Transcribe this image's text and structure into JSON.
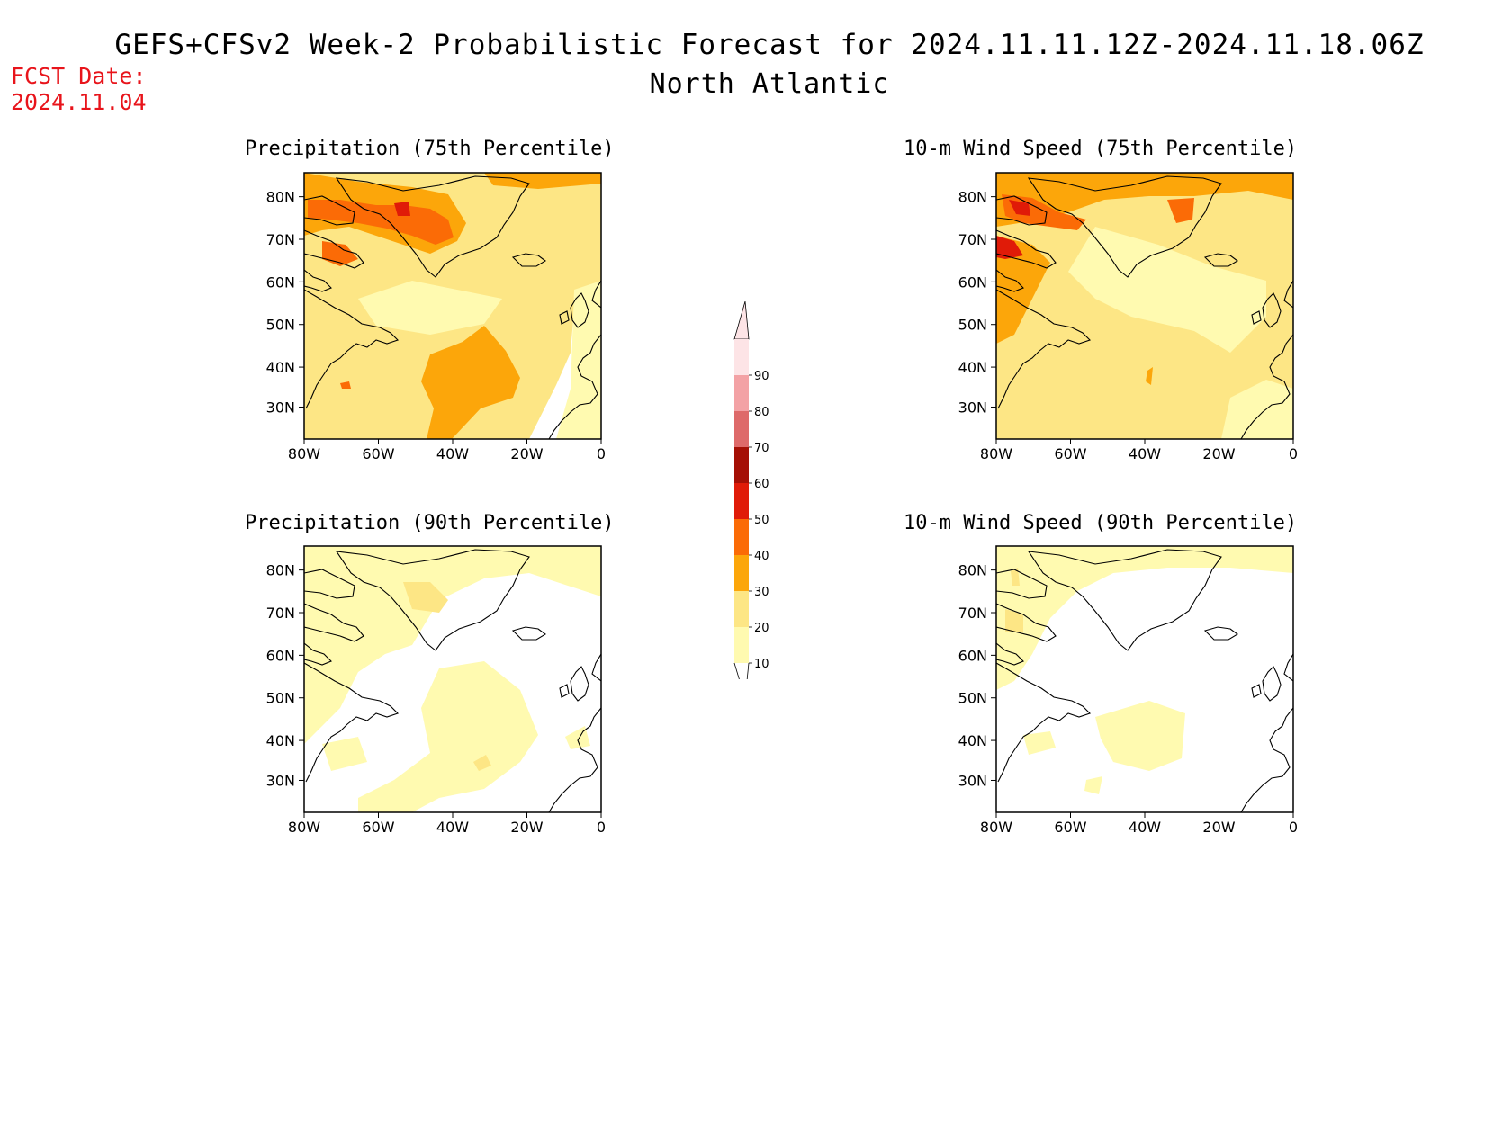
{
  "header": {
    "title": "GEFS+CFSv2 Week-2 Probabilistic Forecast for 2024.11.11.12Z-2024.11.18.06Z",
    "region": "North Atlantic",
    "fcst_label": "FCST Date:",
    "fcst_date": "2024.11.04"
  },
  "colors": {
    "c10": "#fffab0",
    "c20": "#fde685",
    "c30": "#fca60a",
    "c40": "#fb6b06",
    "c50": "#e01b08",
    "c60": "#a50f05",
    "c70": "#de6a6a",
    "c80": "#f3a2a5",
    "c90": "#fde4e6",
    "coast": "#000000"
  },
  "colorbar": {
    "levels": [
      "10",
      "20",
      "30",
      "40",
      "50",
      "60",
      "70",
      "80",
      "90"
    ]
  },
  "axes": {
    "lat_ticks": [
      "80N",
      "70N",
      "60N",
      "50N",
      "40N",
      "30N"
    ],
    "lon_ticks": [
      "80W",
      "60W",
      "40W",
      "20W",
      "0"
    ]
  },
  "panels": [
    {
      "title": "Precipitation (75th Percentile)"
    },
    {
      "title": "10-m Wind Speed (75th Percentile)"
    },
    {
      "title": "Precipitation (90th Percentile)"
    },
    {
      "title": "10-m Wind Speed (90th Percentile)"
    }
  ]
}
